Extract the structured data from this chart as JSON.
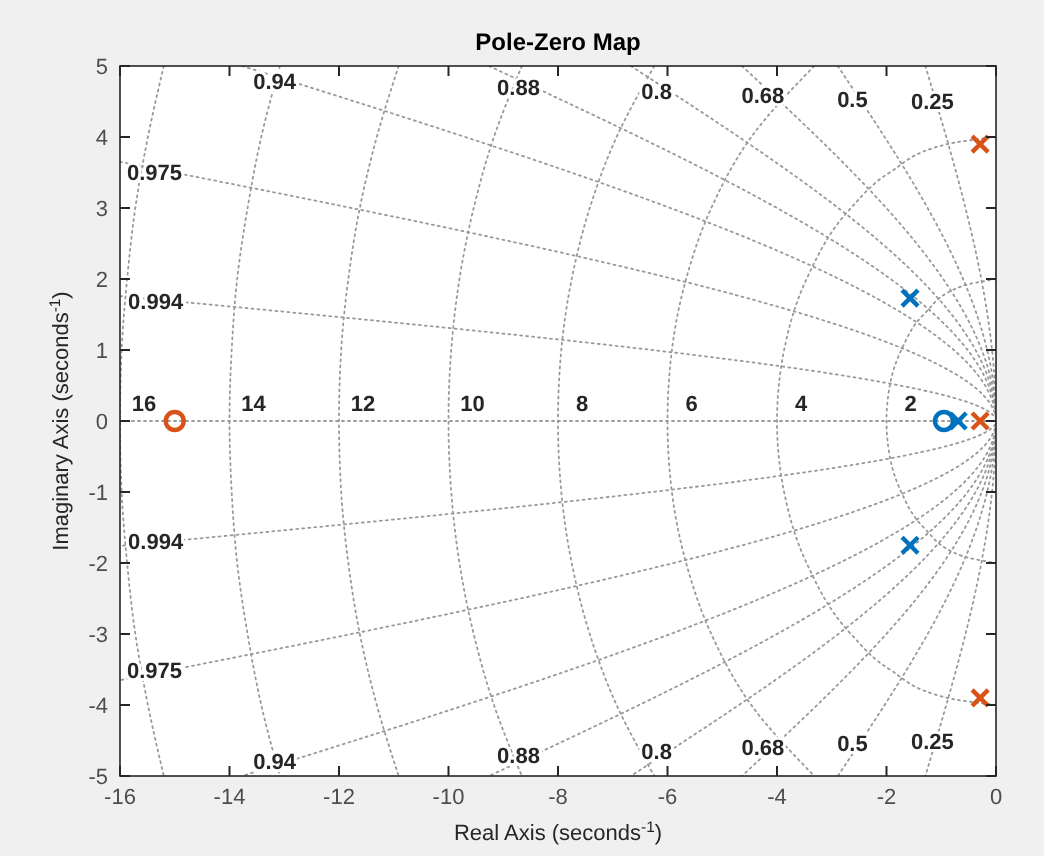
{
  "chart_data": {
    "type": "scatter",
    "title": "Pole-Zero Map",
    "xlabel": "Real Axis (seconds$^{-1}$)",
    "ylabel": "Imaginary Axis (seconds$^{-1}$)",
    "xlim": [
      -16,
      0
    ],
    "xticks": [
      -16,
      -14,
      -12,
      -10,
      -8,
      -6,
      -4,
      -2,
      0
    ],
    "ylim": [
      -5,
      5
    ],
    "yticks": [
      -5,
      -4,
      -3,
      -2,
      -1,
      0,
      1,
      2,
      3,
      4,
      5
    ],
    "series": [
      {
        "color": "#0072bd",
        "marker": "cross",
        "x": [
          -1.57,
          -1.57,
          -0.69
        ],
        "values": [
          1.73,
          -1.75,
          0
        ]
      },
      {
        "color": "#0072bd",
        "marker": "circle",
        "x": [
          -0.95
        ],
        "values": [
          0
        ]
      },
      {
        "color": "#d95319",
        "marker": "cross",
        "x": [
          -0.29,
          -0.29,
          -0.29
        ],
        "values": [
          3.9,
          0,
          -3.9
        ]
      },
      {
        "color": "#d95319",
        "marker": "circle",
        "x": [
          -15
        ],
        "values": [
          0
        ]
      },
      {
        "type": "line",
        "color": "#999999",
        "line_style": "dotted",
        "x": [
          -13.77,
          0,
          -13.77
        ],
        "values": [
          5,
          0,
          -5
        ]
      },
      {
        "type": "line",
        "color": "#999999",
        "line_style": "dotted",
        "x": [
          -9.26,
          0,
          -9.26
        ],
        "values": [
          5,
          0,
          -5
        ]
      },
      {
        "type": "line",
        "color": "#999999",
        "line_style": "dotted",
        "x": [
          -6.67,
          0,
          -6.67
        ],
        "values": [
          5,
          0,
          -5
        ]
      },
      {
        "type": "line",
        "color": "#999999",
        "line_style": "dotted",
        "x": [
          -4.64,
          0,
          -4.64
        ],
        "values": [
          5,
          0,
          -5
        ]
      },
      {
        "type": "line",
        "color": "#999999",
        "line_style": "dotted",
        "x": [
          -2.89,
          0,
          -2.89
        ],
        "values": [
          5,
          0,
          -5
        ]
      },
      {
        "type": "line",
        "color": "#999999",
        "line_style": "dotted",
        "x": [
          -1.29,
          0,
          -1.29
        ],
        "values": [
          5,
          0,
          -5
        ]
      },
      {
        "type": "line",
        "color": "#999999",
        "line_style": "dotted",
        "x": [
          -16,
          0,
          -16
        ],
        "values": [
          3.65,
          0,
          -3.65
        ]
      },
      {
        "type": "line",
        "color": "#999999",
        "line_style": "dotted",
        "x": [
          -16,
          0,
          -16
        ],
        "values": [
          1.76,
          0,
          -1.76
        ]
      },
      {
        "type": "line",
        "color": "#999999",
        "line_style": "dotted",
        "x": [
          -15.2,
          -15.49,
          -15.72,
          -15.87,
          -15.97,
          -16,
          -15.97,
          -15.87,
          -15.72,
          -15.49,
          -15.2
        ],
        "values": [
          5,
          4,
          3,
          2,
          1,
          0,
          -1,
          -2,
          -3,
          -4,
          -5
        ]
      },
      {
        "type": "line",
        "color": "#999999",
        "line_style": "dotted",
        "x": [
          -13.08,
          -13.42,
          -13.67,
          -13.86,
          -13.96,
          -14,
          -13.96,
          -13.86,
          -13.67,
          -13.42,
          -13.08
        ],
        "values": [
          5,
          4,
          3,
          2,
          1,
          0,
          -1,
          -2,
          -3,
          -4,
          -5
        ]
      },
      {
        "type": "line",
        "color": "#999999",
        "line_style": "dotted",
        "x": [
          -10.91,
          -11.31,
          -11.62,
          -11.83,
          -11.96,
          -12,
          -11.96,
          -11.83,
          -11.62,
          -11.31,
          -10.91
        ],
        "values": [
          5,
          4,
          3,
          2,
          1,
          0,
          -1,
          -2,
          -3,
          -4,
          -5
        ]
      },
      {
        "type": "line",
        "color": "#999999",
        "line_style": "dotted",
        "x": [
          -8.66,
          -9.17,
          -9.54,
          -9.8,
          -9.95,
          -10,
          -9.95,
          -9.8,
          -9.54,
          -9.17,
          -8.66
        ],
        "values": [
          5,
          4,
          3,
          2,
          1,
          0,
          -1,
          -2,
          -3,
          -4,
          -5
        ]
      },
      {
        "type": "line",
        "color": "#999999",
        "line_style": "dotted",
        "x": [
          -6.24,
          -6.93,
          -7.42,
          -7.75,
          -7.94,
          -8,
          -7.94,
          -7.75,
          -7.42,
          -6.93,
          -6.24
        ],
        "values": [
          5,
          4,
          3,
          2,
          1,
          0,
          -1,
          -2,
          -3,
          -4,
          -5
        ]
      },
      {
        "type": "line",
        "color": "#999999",
        "line_style": "dotted",
        "x": [
          -3.32,
          -4.47,
          -5.2,
          -5.66,
          -5.92,
          -6,
          -5.92,
          -5.66,
          -5.2,
          -4.47,
          -3.32
        ],
        "values": [
          5,
          4,
          3,
          2,
          1,
          0,
          -1,
          -2,
          -3,
          -4,
          -5
        ]
      },
      {
        "type": "line",
        "color": "#999999",
        "line_style": "dotted",
        "x": [
          0,
          -0.89,
          -1.94,
          -2.65,
          -3.46,
          -3.87,
          -4,
          -3.87,
          -3.46,
          -2.65,
          -1.94,
          -0.89,
          0
        ],
        "values": [
          4,
          3.9,
          3.5,
          3,
          2,
          1,
          0,
          -1,
          -2,
          -3,
          -3.5,
          -3.9,
          -4
        ]
      },
      {
        "type": "line",
        "color": "#999999",
        "line_style": "dotted",
        "x": [
          0,
          -0.62,
          -1.32,
          -1.73,
          -1.94,
          -2,
          -1.94,
          -1.73,
          -1.32,
          -0.62,
          0
        ],
        "values": [
          2,
          1.9,
          1.5,
          1,
          0.5,
          0,
          -0.5,
          -1,
          -1.5,
          -1.9,
          -2
        ]
      },
      {
        "type": "line",
        "color": "#999999",
        "line_style": "dotted",
        "x": [
          -16,
          0
        ],
        "values": [
          0,
          0
        ]
      }
    ],
    "annotations": [
      "0.94",
      "0.94",
      "0.88",
      "0.88",
      "0.8",
      "0.8",
      "0.68",
      "0.68",
      "0.5",
      "0.5",
      "0.25",
      "0.25",
      "0.975",
      "0.975",
      "0.994",
      "0.994",
      "16",
      "14",
      "12",
      "10",
      "8",
      "6",
      "4",
      "2"
    ]
  }
}
